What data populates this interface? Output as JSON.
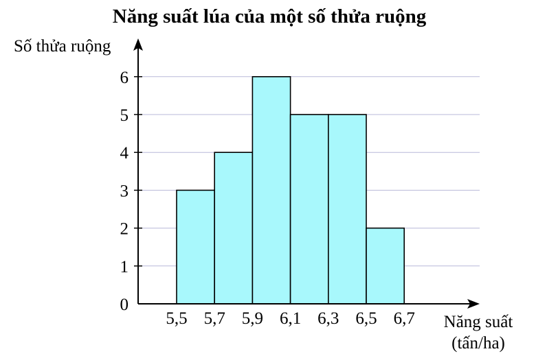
{
  "chart_data": {
    "type": "bar",
    "title": "Năng suất lúa của một số thửa ruộng",
    "ylabel": "Số thửa ruộng",
    "xlabel": "Năng suất",
    "xlabel_unit": "(tấn/ha)",
    "bin_edges": [
      "5,5",
      "5,7",
      "5,9",
      "6,1",
      "6,3",
      "6,5",
      "6,7"
    ],
    "values": [
      3,
      4,
      6,
      5,
      5,
      2
    ],
    "y_ticks": [
      "0",
      "1",
      "2",
      "3",
      "4",
      "5",
      "6"
    ],
    "ylim": [
      0,
      6
    ],
    "grid": true,
    "bar_color": "#a8f8fc",
    "grid_color": "#b8b8d8"
  }
}
